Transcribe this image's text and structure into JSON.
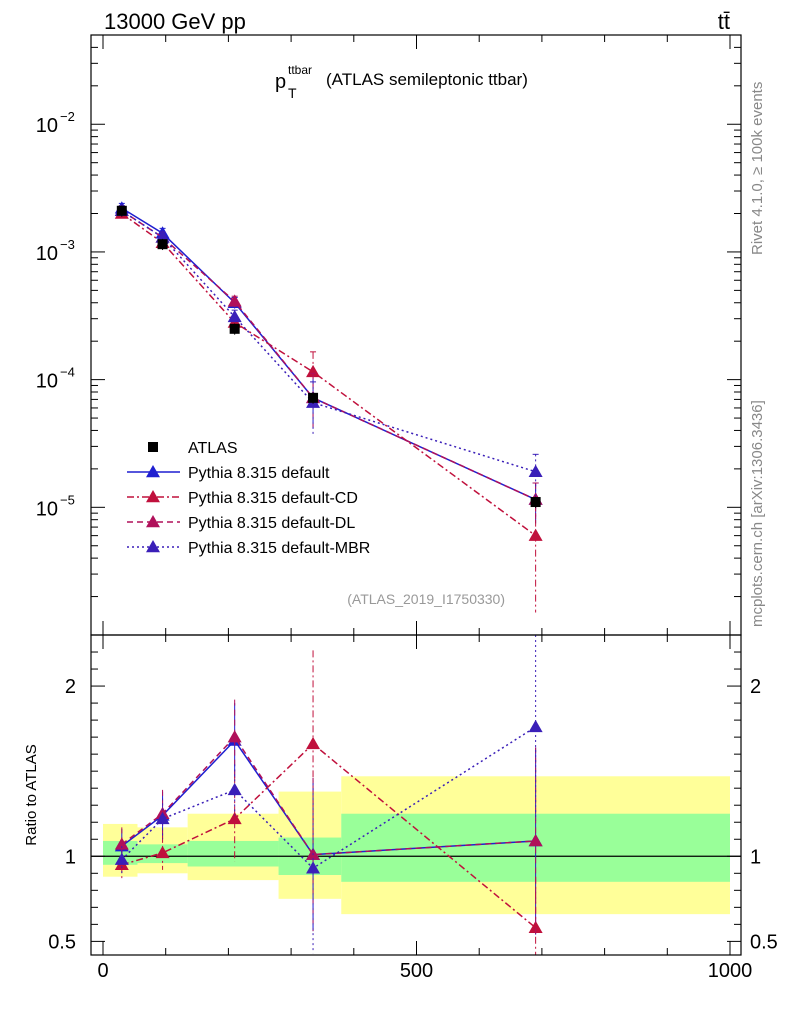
{
  "header": {
    "energy_label": "13000 GeV pp",
    "process_label": "tt̄",
    "side_label_top": "Rivet 4.1.0, ≥ 100k events",
    "side_label_bottom": "mcplots.cern.ch [arXiv:1306.3436]"
  },
  "chart_data": {
    "type": "line",
    "title_main": "p",
    "title_sup": "ttbar",
    "title_sub": "T",
    "title_rest": "(ATLAS semileptonic ttbar)",
    "analysis_id": "(ATLAS_2019_I1750330)",
    "x_range": [
      -20,
      1000
    ],
    "x_ticks": [
      "0",
      "500",
      "1000"
    ],
    "x_tick_values": [
      0,
      500,
      1000
    ],
    "main_yscale": "log",
    "main_ylim": [
      1e-06,
      0.05
    ],
    "main_y_ticks": [
      {
        "value": 0.01,
        "base": "10",
        "exp": "−2"
      },
      {
        "value": 0.001,
        "base": "10",
        "exp": "−3"
      },
      {
        "value": 0.0001,
        "base": "10",
        "exp": "−4"
      },
      {
        "value": 1e-05,
        "base": "10",
        "exp": "−5"
      }
    ],
    "ratio_ylabel": "Ratio to ATLAS",
    "ratio_ylim": [
      0.42,
      2.3
    ],
    "ratio_y_ticks": [
      {
        "value": 0.5,
        "label": "0.5"
      },
      {
        "value": 1,
        "label": "1"
      },
      {
        "value": 2,
        "label": "2"
      }
    ],
    "x": [
      30,
      95,
      210,
      335,
      690
    ],
    "bin_edges": [
      0,
      55,
      135,
      280,
      380,
      1000
    ],
    "band_inner": [
      [
        0.95,
        1.09
      ],
      [
        0.96,
        1.07
      ],
      [
        0.94,
        1.09
      ],
      [
        0.89,
        1.11
      ],
      [
        0.85,
        1.25
      ]
    ],
    "band_outer": [
      [
        0.88,
        1.19
      ],
      [
        0.9,
        1.17
      ],
      [
        0.86,
        1.25
      ],
      [
        0.75,
        1.38
      ],
      [
        0.66,
        1.47
      ]
    ],
    "legend_position": "middle-left",
    "series": [
      {
        "name": "ATLAS",
        "color": "#000000",
        "marker": "square",
        "dash": "none",
        "values": [
          0.0021,
          0.00115,
          0.00025,
          7.2e-05,
          1.1e-05
        ],
        "ratio": [
          1,
          1,
          1,
          1,
          1
        ]
      },
      {
        "name": "Pythia 8.315 default",
        "color": "#1f1fd0",
        "marker": "triangle",
        "dash": "solid",
        "values": [
          0.0022,
          0.0014,
          0.0004,
          7.2e-05,
          1.15e-05
        ],
        "ratio": [
          1.06,
          1.24,
          1.68,
          1.01,
          1.09
        ],
        "err_lo": [
          0.0002,
          0.00013,
          4e-05,
          3e-05,
          4e-06
        ],
        "err_hi": [
          0.0002,
          0.00013,
          4e-05,
          4e-05,
          4e-06
        ],
        "ratio_err": [
          0.1,
          0.14,
          0.22,
          0.45,
          0.55
        ]
      },
      {
        "name": "Pythia 8.315 default-CD",
        "color": "#c0103c",
        "marker": "triangle",
        "dash": "dashdot",
        "values": [
          0.002,
          0.00118,
          0.00028,
          0.000115,
          6e-06
        ],
        "ratio": [
          0.95,
          1.02,
          1.22,
          1.66,
          0.58
        ],
        "err_lo": [
          0.00018,
          0.00012,
          3e-05,
          5e-05,
          4.5e-06
        ],
        "err_hi": [
          0.00018,
          0.00012,
          3e-05,
          5e-05,
          4.5e-06
        ],
        "ratio_err": [
          0.08,
          0.1,
          0.25,
          0.55,
          0.3
        ]
      },
      {
        "name": "Pythia 8.315 default-DL",
        "color": "#b0105a",
        "marker": "triangle",
        "dash": "dashed",
        "values": [
          0.0021,
          0.0013,
          0.00041,
          7.2e-05,
          1.15e-05
        ],
        "ratio": [
          1.07,
          1.25,
          1.7,
          1.01,
          1.09
        ],
        "err_lo": [
          0.0002,
          0.00013,
          4e-05,
          3e-05,
          4e-06
        ],
        "err_hi": [
          0.0002,
          0.00013,
          4e-05,
          4e-05,
          4e-06
        ],
        "ratio_err": [
          0.1,
          0.14,
          0.22,
          0.45,
          0.55
        ]
      },
      {
        "name": "Pythia 8.315 default-MBR",
        "color": "#3a1fb8",
        "marker": "triangle",
        "dash": "dotted",
        "values": [
          0.0021,
          0.0013,
          0.00031,
          6.6e-05,
          1.9e-05
        ],
        "ratio": [
          0.98,
          1.22,
          1.39,
          0.93,
          1.76
        ],
        "err_lo": [
          0.0002,
          0.00013,
          4e-05,
          3e-05,
          7e-06
        ],
        "err_hi": [
          0.0002,
          0.00013,
          4e-05,
          3e-05,
          7e-06
        ],
        "ratio_err": [
          0.08,
          0.12,
          0.15,
          0.5,
          0.55
        ]
      }
    ]
  }
}
